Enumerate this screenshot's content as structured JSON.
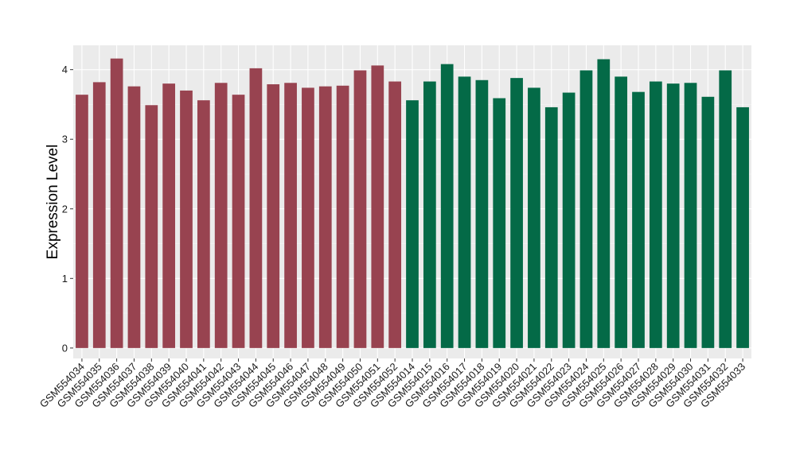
{
  "chart_data": {
    "type": "bar",
    "title": "",
    "xlabel": "",
    "ylabel": "Expression Level",
    "ylim": [
      -0.15,
      4.35
    ],
    "yticks": [
      0,
      1,
      2,
      3,
      4
    ],
    "grid": true,
    "legend": "none",
    "colors": {
      "panel_background": "#ebebeb",
      "grid_major": "#ffffff",
      "grid_minor": "#f5f5f5",
      "tick_mark": "#333333"
    },
    "series": [
      {
        "color": "#984350",
        "categories": [
          "GSM554034",
          "GSM554035",
          "GSM554036",
          "GSM554037",
          "GSM554038",
          "GSM554039",
          "GSM554040",
          "GSM554041",
          "GSM554042",
          "GSM554043",
          "GSM554044",
          "GSM554045",
          "GSM554046",
          "GSM554047",
          "GSM554048",
          "GSM554049",
          "GSM554050",
          "GSM554051",
          "GSM554052"
        ],
        "values": [
          3.64,
          3.82,
          4.16,
          3.76,
          3.49,
          3.8,
          3.7,
          3.56,
          3.81,
          3.64,
          4.02,
          3.79,
          3.81,
          3.74,
          3.76,
          3.77,
          3.99,
          4.06,
          3.83
        ]
      },
      {
        "color": "#046a47",
        "categories": [
          "GSM554014",
          "GSM554015",
          "GSM554016",
          "GSM554017",
          "GSM554018",
          "GSM554019",
          "GSM554020",
          "GSM554021",
          "GSM554022",
          "GSM554023",
          "GSM554024",
          "GSM554025",
          "GSM554026",
          "GSM554027",
          "GSM554028",
          "GSM554029",
          "GSM554030",
          "GSM554031",
          "GSM554032",
          "GSM554033"
        ],
        "values": [
          3.56,
          3.83,
          4.08,
          3.9,
          3.85,
          3.59,
          3.88,
          3.74,
          3.46,
          3.67,
          3.99,
          4.15,
          3.9,
          3.68,
          3.83,
          3.8,
          3.81,
          3.61,
          3.99,
          3.46
        ]
      }
    ]
  }
}
